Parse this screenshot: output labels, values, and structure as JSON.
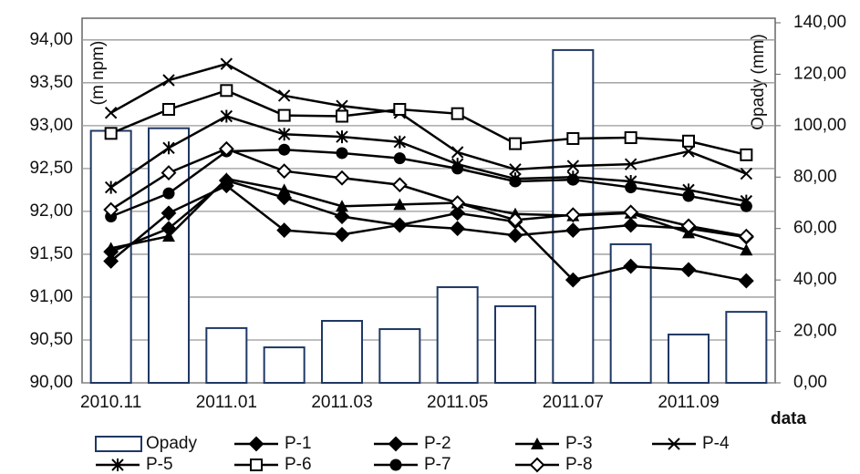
{
  "chart_data": {
    "type": "combo",
    "x_label": "data",
    "y_label": "(m npm)",
    "y2_label": "Opady (mm)",
    "categories": [
      "2010.11",
      null,
      "2011.01",
      null,
      "2011.03",
      null,
      "2011.05",
      null,
      "2011.07",
      null,
      "2011.09",
      null
    ],
    "ylim": [
      90,
      94.2
    ],
    "yticks": [
      {
        "value": 90,
        "label": "90,00"
      },
      {
        "value": 90.5,
        "label": "90,50"
      },
      {
        "value": 91,
        "label": "91,00"
      },
      {
        "value": 91.5,
        "label": "91,50"
      },
      {
        "value": 92,
        "label": "92,00"
      },
      {
        "value": 92.5,
        "label": "92,50"
      },
      {
        "value": 93,
        "label": "93,00"
      },
      {
        "value": 93.5,
        "label": "93,50"
      },
      {
        "value": 94,
        "label": "94,00"
      }
    ],
    "y2lim": [
      0,
      140
    ],
    "y2ticks": [
      {
        "value": 0,
        "label": "0,00"
      },
      {
        "value": 20,
        "label": "20,00"
      },
      {
        "value": 40,
        "label": "40,00"
      },
      {
        "value": 60,
        "label": "60,00"
      },
      {
        "value": 80,
        "label": "80,00"
      },
      {
        "value": 100,
        "label": "100,00"
      },
      {
        "value": 120,
        "label": "120,00"
      },
      {
        "value": 140,
        "label": "140,00"
      }
    ],
    "grid": true,
    "legend": "bottom",
    "series": [
      {
        "name": "Opady",
        "type": "bar",
        "axis": "y2",
        "color": "#1f3864",
        "values": [
          98,
          99,
          21.3,
          13.8,
          24.1,
          20.9,
          37.2,
          29.8,
          129.4,
          53.9,
          18.8,
          27.6
        ]
      },
      {
        "name": "P-1",
        "type": "line",
        "marker": "diamond",
        "color": "#000000",
        "values": [
          91.42,
          91.98,
          92.3,
          91.78,
          91.73,
          91.84,
          91.8,
          91.72,
          91.78,
          91.84,
          91.8,
          91.7
        ]
      },
      {
        "name": "P-2",
        "type": "line",
        "marker": "diamond",
        "color": "#000000",
        "values": [
          91.53,
          91.8,
          92.36,
          92.16,
          91.94,
          91.84,
          91.98,
          91.88,
          91.2,
          91.36,
          91.32,
          91.19
        ]
      },
      {
        "name": "P-3",
        "type": "line",
        "marker": "triangle",
        "color": "#000000",
        "values": [
          91.57,
          91.71,
          92.38,
          92.25,
          92.06,
          92.08,
          92.1,
          91.97,
          91.95,
          91.98,
          91.75,
          91.55
        ]
      },
      {
        "name": "P-4",
        "type": "line",
        "marker": "x",
        "color": "#000000",
        "values": [
          93.15,
          93.53,
          93.72,
          93.35,
          93.23,
          93.15,
          92.69,
          92.49,
          92.53,
          92.55,
          92.7,
          92.44
        ]
      },
      {
        "name": "P-5",
        "type": "line",
        "marker": "asterisk",
        "color": "#000000",
        "values": [
          92.28,
          92.74,
          93.11,
          92.9,
          92.87,
          92.81,
          92.55,
          92.38,
          92.4,
          92.35,
          92.25,
          92.12
        ]
      },
      {
        "name": "P-6",
        "type": "line",
        "marker": "square",
        "color": "#000000",
        "values": [
          92.91,
          93.19,
          93.41,
          93.12,
          93.11,
          93.19,
          93.14,
          92.79,
          92.85,
          92.86,
          92.82,
          92.66
        ]
      },
      {
        "name": "P-7",
        "type": "line",
        "marker": "circle",
        "color": "#000000",
        "values": [
          91.94,
          92.21,
          92.7,
          92.72,
          92.68,
          92.62,
          92.5,
          92.35,
          92.37,
          92.28,
          92.18,
          92.06
        ]
      },
      {
        "name": "P-8",
        "type": "line",
        "marker": "diamond-open",
        "color": "#000000",
        "values": [
          92.02,
          92.45,
          92.73,
          92.47,
          92.39,
          92.31,
          92.1,
          91.9,
          91.96,
          91.99,
          91.83,
          91.71
        ]
      }
    ]
  }
}
